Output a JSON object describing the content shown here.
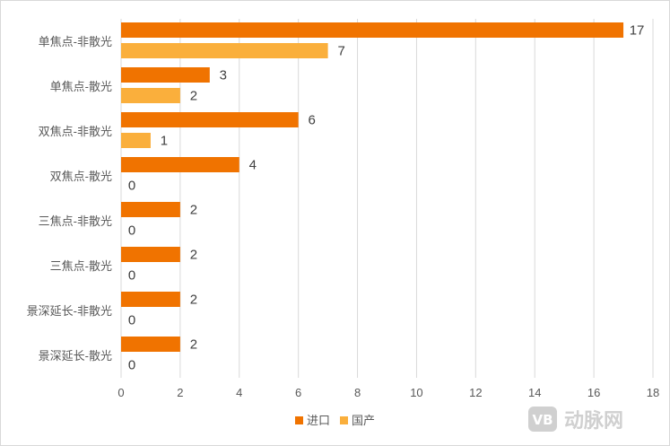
{
  "chart_data": {
    "type": "bar",
    "orientation": "horizontal",
    "categories": [
      "单焦点-非散光",
      "单焦点-散光",
      "双焦点-非散光",
      "双焦点-散光",
      "三焦点-非散光",
      "三焦点-散光",
      "景深延长-非散光",
      "景深延长-散光"
    ],
    "series": [
      {
        "name": "进口",
        "color": "#F07300",
        "values": [
          17,
          3,
          6,
          4,
          2,
          2,
          2,
          2
        ]
      },
      {
        "name": "国产",
        "color": "#FAAF3C",
        "values": [
          7,
          2,
          1,
          0,
          0,
          0,
          0,
          0
        ]
      }
    ],
    "xlim": [
      0,
      18
    ],
    "xticks": [
      0,
      2,
      4,
      6,
      8,
      10,
      12,
      14,
      16,
      18
    ],
    "grid": "vertical",
    "legend": "bottom-center",
    "title": "",
    "xlabel": "",
    "ylabel": ""
  },
  "watermark": {
    "text": "动脉网",
    "logo_text": "VB"
  }
}
